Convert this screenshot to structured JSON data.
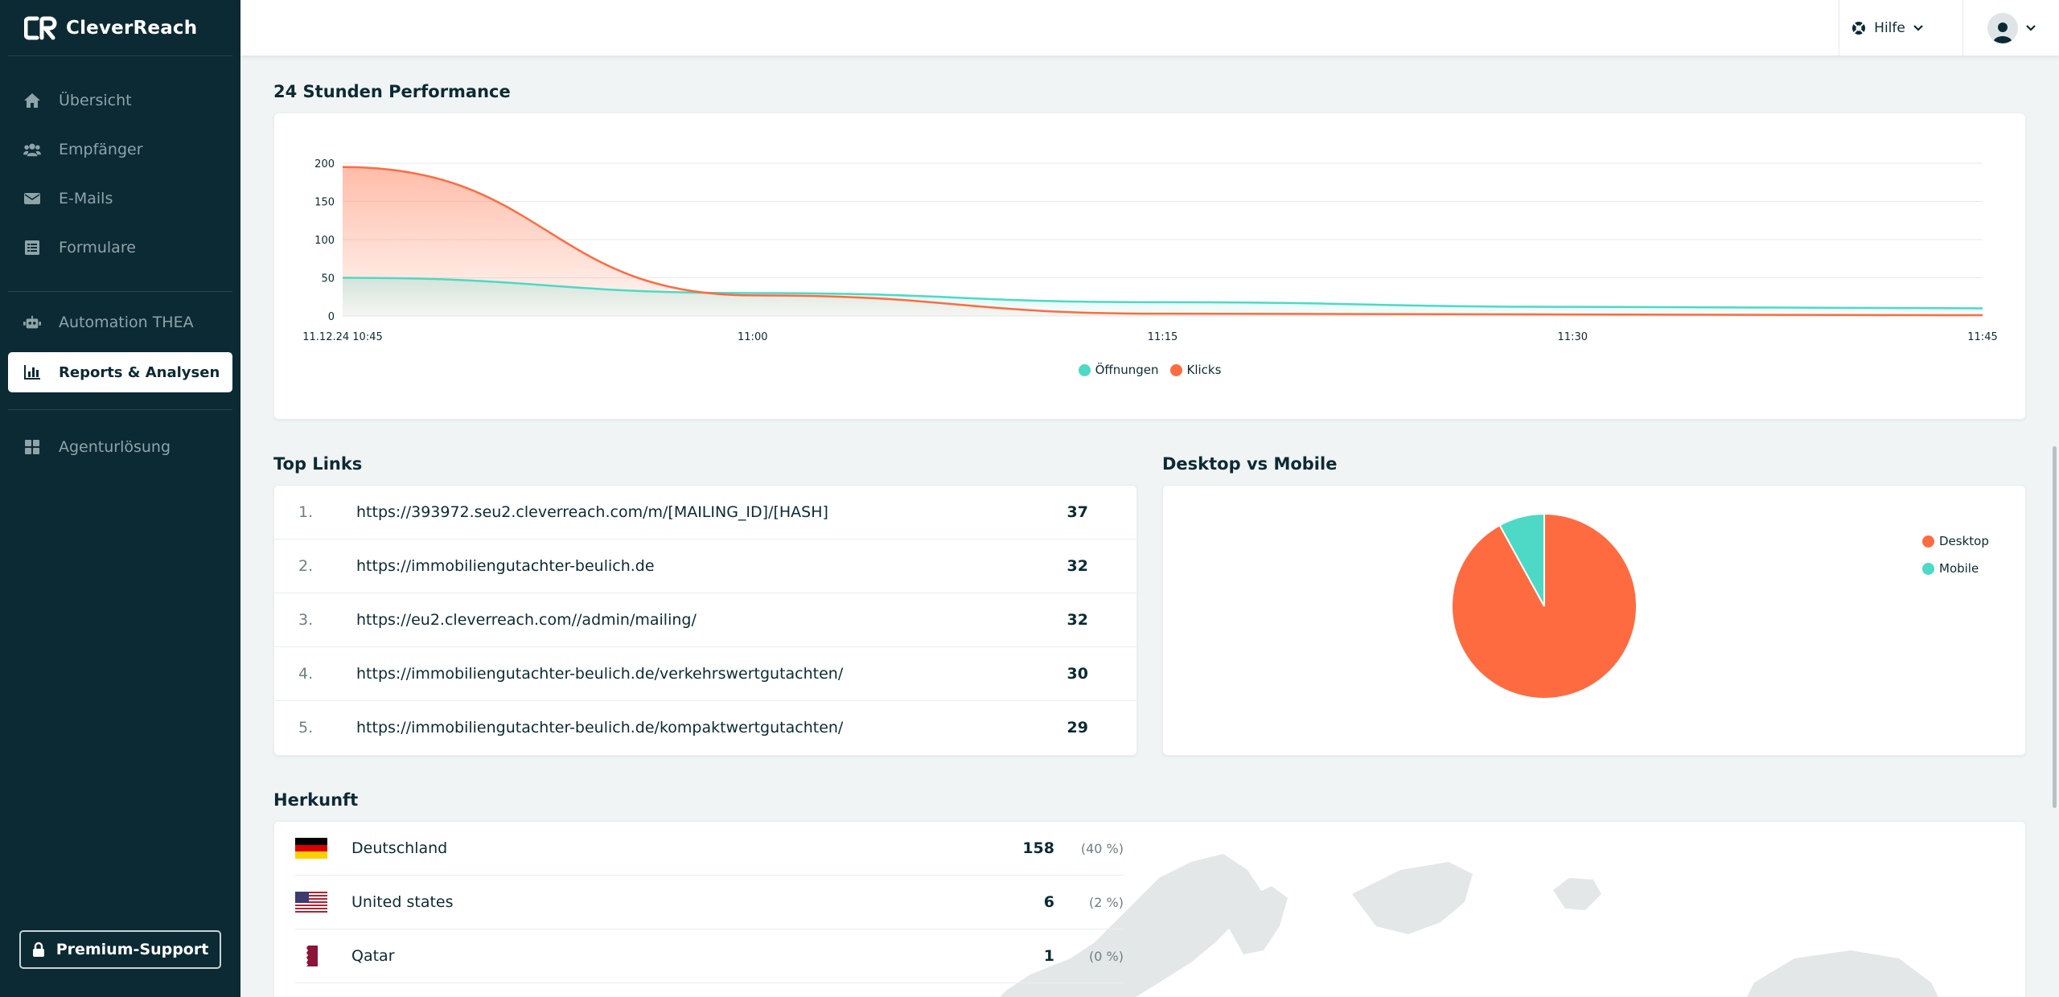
{
  "app": {
    "logo_text": "CleverReach"
  },
  "sidebar": {
    "items": [
      {
        "label": "Übersicht",
        "icon": "home-icon"
      },
      {
        "label": "Empfänger",
        "icon": "users-icon"
      },
      {
        "label": "E-Mails",
        "icon": "envelope-icon"
      },
      {
        "label": "Formulare",
        "icon": "form-icon"
      },
      {
        "label": "Automation THEA",
        "icon": "robot-icon"
      },
      {
        "label": "Reports & Analysen",
        "icon": "bar-chart-icon",
        "active": true
      },
      {
        "label": "Agenturlösung",
        "icon": "grid-icon"
      }
    ],
    "premium_label": "Premium-Support"
  },
  "header": {
    "help_label": "Hilfe"
  },
  "performance": {
    "title": "24 Stunden Performance",
    "legend": [
      "Öffnungen",
      "Klicks"
    ]
  },
  "chart_data": {
    "type": "area",
    "title": "24 Stunden Performance",
    "x": [
      "11.12.24 10:45",
      "11:00",
      "11:15",
      "11:30",
      "11:45"
    ],
    "x_tick_labels": [
      "11.12.24 10:45",
      "11:00",
      "11:15",
      "11:30",
      "11:45"
    ],
    "y_ticks": [
      0,
      50,
      100,
      150,
      200
    ],
    "ylim": [
      0,
      200
    ],
    "series": [
      {
        "name": "Öffnungen",
        "color": "#4dd9c5",
        "values": [
          50,
          30,
          18,
          12,
          10
        ]
      },
      {
        "name": "Klicks",
        "color": "#ff6b40",
        "values": [
          195,
          27,
          3,
          2,
          1
        ]
      }
    ],
    "legend_position": "bottom-center"
  },
  "top_links": {
    "title": "Top Links",
    "rows": [
      {
        "rank": "1.",
        "url": "https://393972.seu2.cleverreach.com/m/[MAILING_ID]/[HASH]",
        "clicks": "37"
      },
      {
        "rank": "2.",
        "url": "https://immobiliengutachter-beulich.de",
        "clicks": "32"
      },
      {
        "rank": "3.",
        "url": "https://eu2.cleverreach.com//admin/mailing/",
        "clicks": "32"
      },
      {
        "rank": "4.",
        "url": "https://immobiliengutachter-beulich.de/verkehrswertgutachten/",
        "clicks": "30"
      },
      {
        "rank": "5.",
        "url": "https://immobiliengutachter-beulich.de/kompaktwertgutachten/",
        "clicks": "29"
      }
    ]
  },
  "device": {
    "title": "Desktop vs Mobile",
    "slices": [
      {
        "label": "Desktop",
        "value": 92,
        "color": "#ff6b40"
      },
      {
        "label": "Mobile",
        "value": 8,
        "color": "#4dd9c5"
      }
    ]
  },
  "origin": {
    "title": "Herkunft",
    "rows": [
      {
        "country": "Deutschland",
        "count": "158",
        "pct": "(40 %)",
        "flag": "de-flag-icon"
      },
      {
        "country": "United states",
        "count": "6",
        "pct": "(2 %)",
        "flag": "us-flag-icon"
      },
      {
        "country": "Qatar",
        "count": "1",
        "pct": "(0 %)",
        "flag": "qa-flag-icon"
      }
    ]
  }
}
